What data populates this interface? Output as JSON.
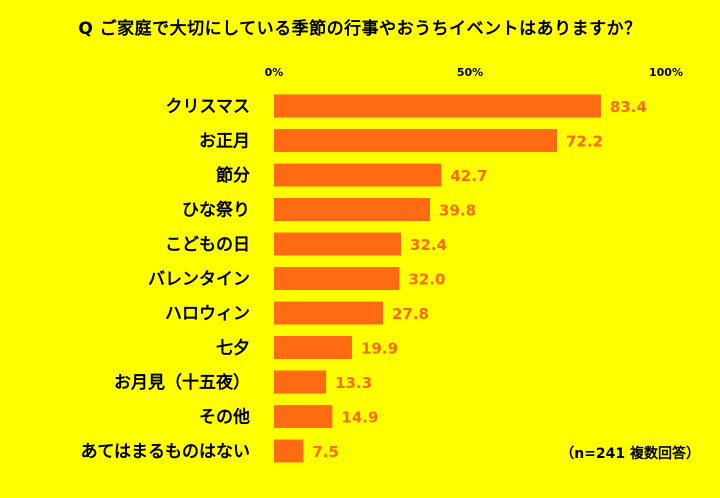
{
  "title": "Q ご家庭で大切にしている季節の行事やおうちイベントはありますか？",
  "note": "（n=241 複数回答）",
  "colors": {
    "background": "#FFFF00",
    "bar": "#FF6B12",
    "label": "#000000",
    "value": "#FF6B12"
  },
  "chart_data": {
    "type": "bar",
    "orientation": "horizontal",
    "xlim": [
      0,
      100
    ],
    "xticks": [
      0,
      50,
      100
    ],
    "xtick_labels": [
      "0%",
      "50%",
      "100%"
    ],
    "grid": false,
    "categories": [
      "クリスマス",
      "お正月",
      "節分",
      "ひな祭り",
      "こどもの日",
      "バレンタイン",
      "ハロウィン",
      "七夕",
      "お月見（十五夜）",
      "その他",
      "あてはまるものはない"
    ],
    "values": [
      83.4,
      72.2,
      42.7,
      39.8,
      32.4,
      32.0,
      27.8,
      19.9,
      13.3,
      14.9,
      7.5
    ],
    "value_labels": [
      "83.4",
      "72.2",
      "42.7",
      "39.8",
      "32.4",
      "32.0",
      "27.8",
      "19.9",
      "13.3",
      "14.9",
      "7.5"
    ]
  }
}
